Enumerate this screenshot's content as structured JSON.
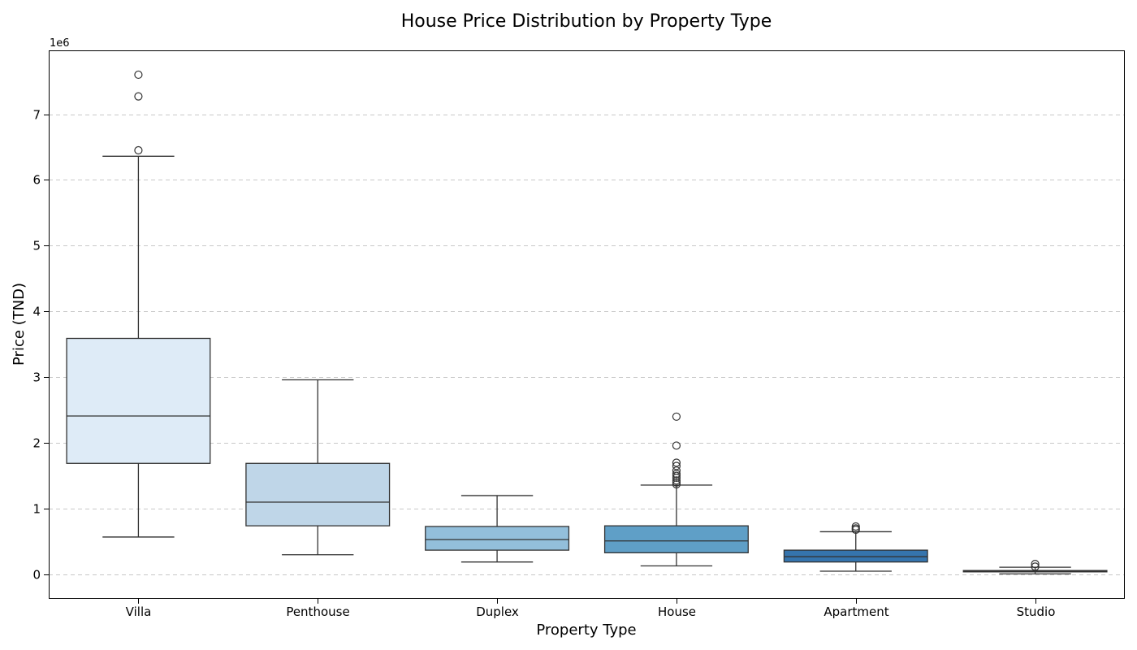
{
  "chart_data": {
    "type": "box",
    "title": "House Price Distribution by Property Type",
    "xlabel": "Property Type",
    "ylabel": "Price (TND)",
    "y_offset_label": "1e6",
    "ylim": [
      -0.37,
      7.97
    ],
    "yticks": [
      0,
      1,
      2,
      3,
      4,
      5,
      6,
      7
    ],
    "grid": "y-dashed",
    "categories": [
      "Villa",
      "Penthouse",
      "Duplex",
      "House",
      "Apartment",
      "Studio"
    ],
    "boxes": [
      {
        "category": "Villa",
        "whisker_low": 0.57,
        "q1": 1.69,
        "median": 2.41,
        "q3": 3.59,
        "whisker_high": 6.36,
        "fliers": [
          6.45,
          7.27,
          7.6
        ],
        "color": "#deebf7"
      },
      {
        "category": "Penthouse",
        "whisker_low": 0.3,
        "q1": 0.74,
        "median": 1.1,
        "q3": 1.69,
        "whisker_high": 2.96,
        "fliers": [],
        "color": "#bfd6e8"
      },
      {
        "category": "Duplex",
        "whisker_low": 0.19,
        "q1": 0.37,
        "median": 0.53,
        "q3": 0.73,
        "whisker_high": 1.2,
        "fliers": [],
        "color": "#93bfdb"
      },
      {
        "category": "House",
        "whisker_low": 0.13,
        "q1": 0.33,
        "median": 0.51,
        "q3": 0.74,
        "whisker_high": 1.36,
        "fliers": [
          1.37,
          1.4,
          1.43,
          1.47,
          1.5,
          1.53,
          1.58,
          1.65,
          1.7,
          1.96,
          2.4
        ],
        "color": "#5f9fc7"
      },
      {
        "category": "Apartment",
        "whisker_low": 0.05,
        "q1": 0.19,
        "median": 0.27,
        "q3": 0.37,
        "whisker_high": 0.65,
        "fliers": [
          0.68,
          0.7,
          0.73
        ],
        "color": "#3574ad"
      },
      {
        "category": "Studio",
        "whisker_low": 0.01,
        "q1": 0.04,
        "median": 0.05,
        "q3": 0.06,
        "whisker_high": 0.11,
        "fliers": [
          0.12,
          0.16
        ],
        "color": "#2c5f99"
      }
    ]
  }
}
